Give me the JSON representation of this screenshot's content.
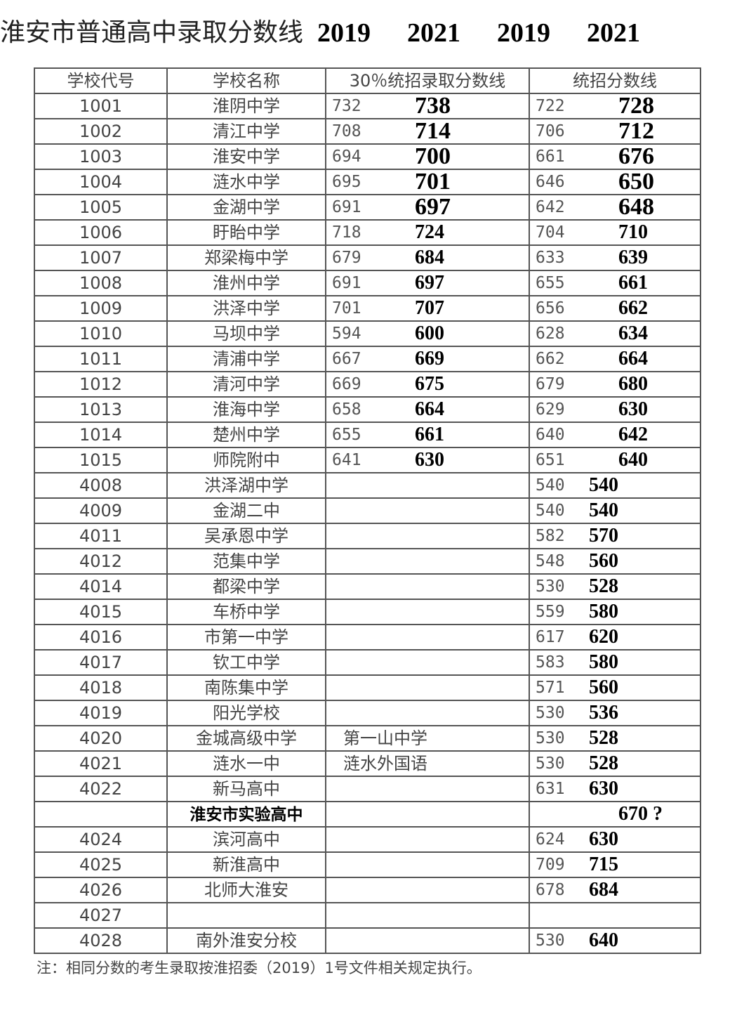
{
  "title": "淮安市普通高中录取分数线",
  "year_labels": [
    "2019",
    "2021",
    "2019",
    "2021"
  ],
  "headers": [
    "学校代号",
    "学校名称",
    "30％统招录取分数线",
    "统招分数线"
  ],
  "rows": [
    {
      "code": "1001",
      "name": "淮阴中学",
      "q2019": "732",
      "q2021": "738",
      "t2019": "722",
      "t2021": "728"
    },
    {
      "code": "1002",
      "name": "清江中学",
      "q2019": "708",
      "q2021": "714",
      "t2019": "706",
      "t2021": "712"
    },
    {
      "code": "1003",
      "name": "淮安中学",
      "q2019": "694",
      "q2021": "700",
      "t2019": "661",
      "t2021": "676"
    },
    {
      "code": "1004",
      "name": "涟水中学",
      "q2019": "695",
      "q2021": "701",
      "t2019": "646",
      "t2021": "650"
    },
    {
      "code": "1005",
      "name": "金湖中学",
      "q2019": "691",
      "q2021": "697",
      "t2019": "642",
      "t2021": "648"
    },
    {
      "code": "1006",
      "name": "盱眙中学",
      "q2019": "718",
      "q2021": "724",
      "t2019": "704",
      "t2021": "710"
    },
    {
      "code": "1007",
      "name": "郑梁梅中学",
      "q2019": "679",
      "q2021": "684",
      "t2019": "633",
      "t2021": "639"
    },
    {
      "code": "1008",
      "name": "淮州中学",
      "q2019": "691",
      "q2021": "697",
      "t2019": "655",
      "t2021": "661"
    },
    {
      "code": "1009",
      "name": "洪泽中学",
      "q2019": "701",
      "q2021": "707",
      "t2019": "656",
      "t2021": "662"
    },
    {
      "code": "1010",
      "name": "马坝中学",
      "q2019": "594",
      "q2021": "600",
      "t2019": "628",
      "t2021": "634"
    },
    {
      "code": "1011",
      "name": "清浦中学",
      "q2019": "667",
      "q2021": "669",
      "t2019": "662",
      "t2021": "664"
    },
    {
      "code": "1012",
      "name": "清河中学",
      "q2019": "669",
      "q2021": "675",
      "t2019": "679",
      "t2021": "680"
    },
    {
      "code": "1013",
      "name": "淮海中学",
      "q2019": "658",
      "q2021": "664",
      "t2019": "629",
      "t2021": "630"
    },
    {
      "code": "1014",
      "name": "楚州中学",
      "q2019": "655",
      "q2021": "661",
      "t2019": "640",
      "t2021": "642"
    },
    {
      "code": "1015",
      "name": "师院附中",
      "q2019": "641",
      "q2021": "630",
      "t2019": "651",
      "t2021": "640"
    },
    {
      "code": "4008",
      "name": "洪泽湖中学",
      "t2019": "540",
      "t2021": "540"
    },
    {
      "code": "4009",
      "name": "金湖二中",
      "t2019": "540",
      "t2021": "540"
    },
    {
      "code": "4011",
      "name": "吴承恩中学",
      "t2019": "582",
      "t2021": "570"
    },
    {
      "code": "4012",
      "name": "范集中学",
      "t2019": "548",
      "t2021": "560"
    },
    {
      "code": "4014",
      "name": "都梁中学",
      "t2019": "530",
      "t2021": "528"
    },
    {
      "code": "4015",
      "name": "车桥中学",
      "t2019": "559",
      "t2021": "580"
    },
    {
      "code": "4016",
      "name": "市第一中学",
      "t2019": "617",
      "t2021": "620"
    },
    {
      "code": "4017",
      "name": "钦工中学",
      "t2019": "583",
      "t2021": "580"
    },
    {
      "code": "4018",
      "name": "南陈集中学",
      "t2019": "571",
      "t2021": "560"
    },
    {
      "code": "4019",
      "name": "阳光学校",
      "t2019": "530",
      "t2021": "536"
    },
    {
      "code": "4020",
      "name": "金城高级中学",
      "extra": "第一山中学",
      "t2019": "530",
      "t2021": "528"
    },
    {
      "code": "4021",
      "name": "涟水一中",
      "extra": "涟水外国语",
      "t2019": "530",
      "t2021": "528"
    },
    {
      "code": "4022",
      "name": "新马高中",
      "t2019": "631",
      "t2021": "630"
    },
    {
      "code": "",
      "name": "淮安市实验高中",
      "bold": true,
      "t2021": "670 ?"
    },
    {
      "code": "4024",
      "name": "滨河高中",
      "t2019": "624",
      "t2021": "630"
    },
    {
      "code": "4025",
      "name": "新淮高中",
      "t2019": "709",
      "t2021": "715"
    },
    {
      "code": "4026",
      "name": "北师大淮安",
      "t2019": "678",
      "t2021": "684"
    },
    {
      "code": "4027",
      "name": ""
    },
    {
      "code": "4028",
      "name": "南外淮安分校",
      "t2019": "530",
      "t2021": "640"
    }
  ],
  "note": "注：相同分数的考生录取按淮招委（2019）1号文件相关规定执行。"
}
